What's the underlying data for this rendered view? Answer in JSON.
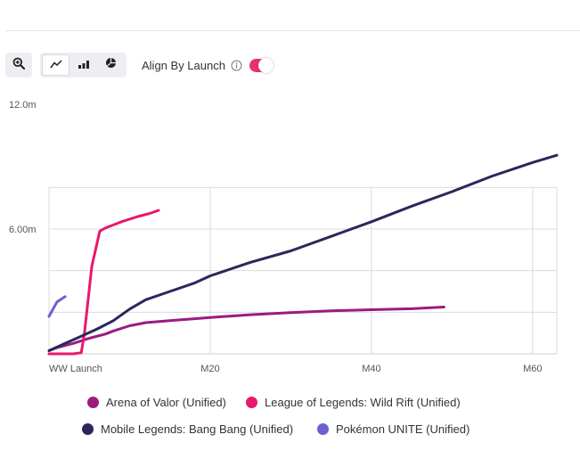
{
  "toolbar": {
    "zoom_icon": "zoom-in-icon",
    "chart_type_icons": [
      "line-chart-icon",
      "bar-chart-icon",
      "pie-chart-icon"
    ],
    "active_chart_type": "line",
    "align_label": "Align By Launch",
    "align_info_icon": "info-icon",
    "align_enabled": true,
    "toggle_color": "#ea2f79"
  },
  "chart_data": {
    "type": "line",
    "title": "",
    "xlabel": "",
    "ylabel": "",
    "y_tick_labels": [
      {
        "value": 12,
        "label": "12.0m"
      },
      {
        "value": 6,
        "label": "6.00m"
      }
    ],
    "x_tick_labels": [
      {
        "value": 0,
        "label": "WW Launch"
      },
      {
        "value": 20,
        "label": "M20"
      },
      {
        "value": 40,
        "label": "M40"
      },
      {
        "value": 60,
        "label": "M60"
      }
    ],
    "xlim": [
      0,
      63
    ],
    "ylim": [
      0,
      12
    ],
    "grid": true,
    "legend_position": "bottom",
    "series": [
      {
        "name": "Arena of Valor (Unified)",
        "color": "#9c1b7f",
        "x": [
          0,
          1,
          3,
          5,
          7,
          8,
          10,
          12,
          15,
          20,
          25,
          30,
          35,
          40,
          45,
          49
        ],
        "y": [
          0.15,
          0.3,
          0.5,
          0.75,
          0.95,
          1.1,
          1.35,
          1.5,
          1.6,
          1.75,
          1.88,
          1.98,
          2.07,
          2.12,
          2.17,
          2.25
        ]
      },
      {
        "name": "League of Legends: Wild Rift (Unified)",
        "color": "#e8186b",
        "x": [
          0,
          1,
          2,
          3,
          4,
          4.4,
          5.3,
          6.3,
          7,
          9,
          11,
          12.5,
          13.6
        ],
        "y": [
          0,
          0,
          0,
          0,
          0.05,
          1.0,
          4.2,
          5.9,
          6.05,
          6.35,
          6.6,
          6.75,
          6.9
        ]
      },
      {
        "name": "Mobile Legends: Bang Bang (Unified)",
        "color": "#2b275d",
        "x": [
          0,
          2,
          4,
          6,
          8,
          10,
          12,
          15,
          18,
          20,
          25,
          30,
          35,
          40,
          45,
          50,
          55,
          60,
          63
        ],
        "y": [
          0.15,
          0.5,
          0.85,
          1.2,
          1.6,
          2.15,
          2.6,
          3.0,
          3.4,
          3.75,
          4.4,
          4.95,
          5.65,
          6.35,
          7.1,
          7.8,
          8.55,
          9.2,
          9.55
        ]
      },
      {
        "name": "Pokémon UNITE (Unified)",
        "color": "#6b60d0",
        "x": [
          0,
          1,
          2
        ],
        "y": [
          1.8,
          2.5,
          2.75
        ]
      }
    ]
  }
}
